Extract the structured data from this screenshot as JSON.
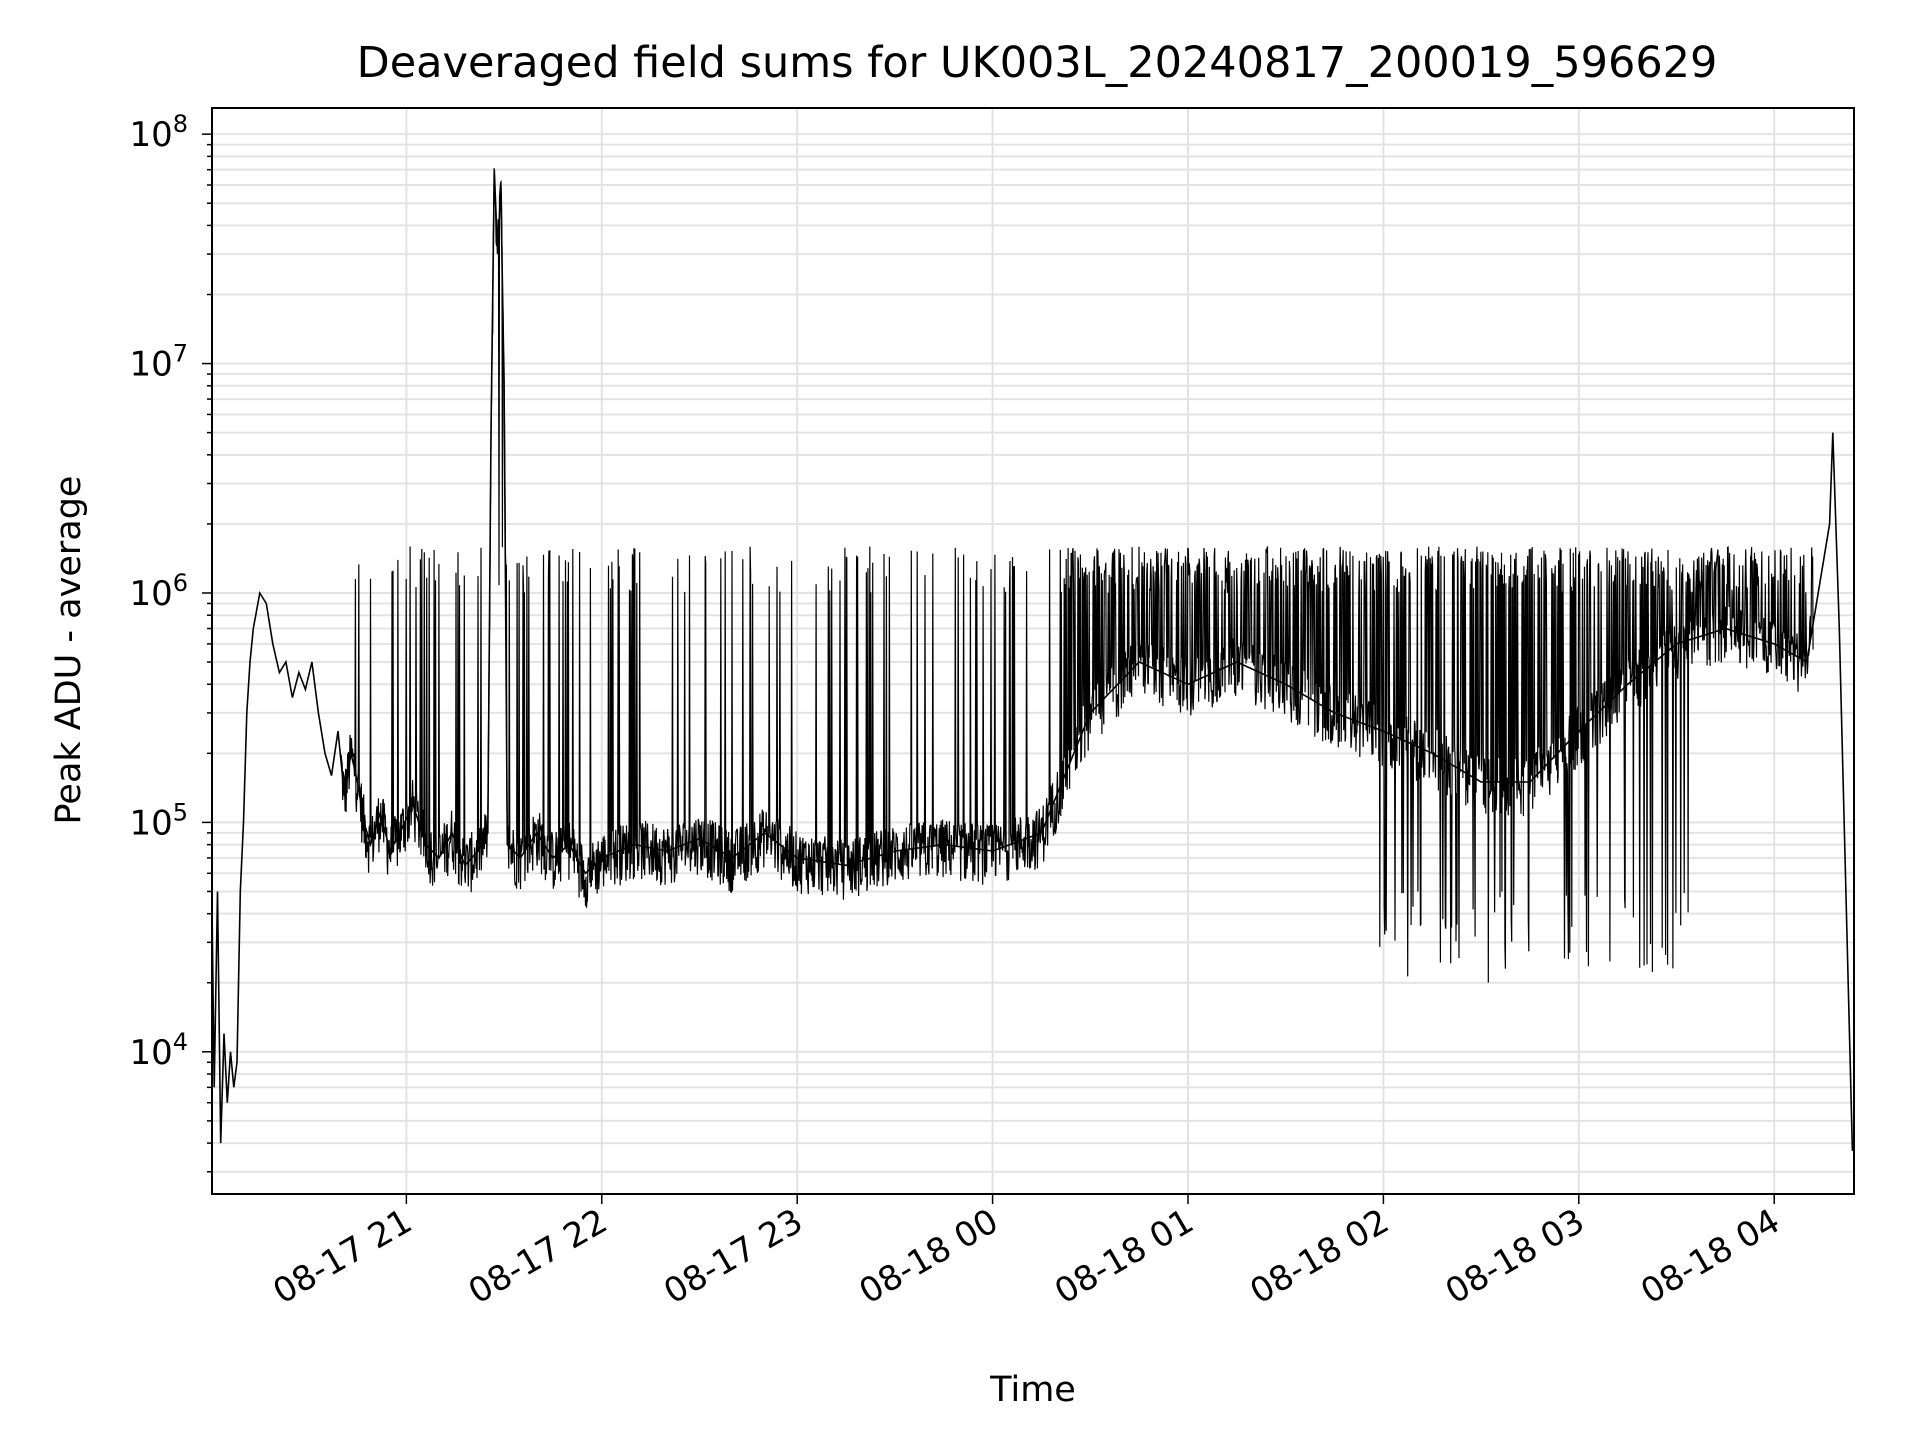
{
  "chart_data": {
    "type": "line",
    "title": "Deaveraged field sums for UK003L_20240817_200019_596629",
    "xlabel": "Time",
    "ylabel": "Peak ADU - average",
    "y_scale": "log",
    "ylim": [
      2400,
      130000000
    ],
    "xlim": [
      "2024-08-17 20:00:19",
      "2024-08-18 04:24:30"
    ],
    "grid": true,
    "line_color": "#000000",
    "x_ticks": [
      "2024-08-17 21:00",
      "2024-08-17 22:00",
      "2024-08-17 23:00",
      "2024-08-18 00:00",
      "2024-08-18 01:00",
      "2024-08-18 02:00",
      "2024-08-18 03:00",
      "2024-08-18 04:00"
    ],
    "x_tick_labels": [
      "08-17 21",
      "08-17 22",
      "08-17 23",
      "08-18 00",
      "08-18 01",
      "08-18 02",
      "08-18 03",
      "08-18 04"
    ],
    "y_ticks": [
      10000,
      100000,
      1000000,
      10000000,
      100000000
    ],
    "y_tick_labels": [
      {
        "base": "10",
        "exp": "4"
      },
      {
        "base": "10",
        "exp": "5"
      },
      {
        "base": "10",
        "exp": "6"
      },
      {
        "base": "10",
        "exp": "7"
      },
      {
        "base": "10",
        "exp": "8"
      }
    ],
    "series": [
      {
        "points": [
          [
            "2024-08-17 20:00:20",
            40000
          ],
          [
            "2024-08-17 20:01:00",
            7000
          ],
          [
            "2024-08-17 20:02:00",
            50000
          ],
          [
            "2024-08-17 20:03:00",
            4000
          ],
          [
            "2024-08-17 20:04:00",
            12000
          ],
          [
            "2024-08-17 20:05:00",
            6000
          ],
          [
            "2024-08-17 20:06:00",
            10000
          ],
          [
            "2024-08-17 20:07:00",
            7000
          ],
          [
            "2024-08-17 20:08:00",
            9000
          ],
          [
            "2024-08-17 20:09:00",
            50000
          ],
          [
            "2024-08-17 20:10:00",
            100000
          ],
          [
            "2024-08-17 20:11:00",
            300000
          ],
          [
            "2024-08-17 20:12:00",
            500000
          ],
          [
            "2024-08-17 20:13:00",
            700000
          ],
          [
            "2024-08-17 20:15:00",
            1000000
          ],
          [
            "2024-08-17 20:17:00",
            900000
          ],
          [
            "2024-08-17 20:19:00",
            600000
          ],
          [
            "2024-08-17 20:21:00",
            450000
          ],
          [
            "2024-08-17 20:23:00",
            500000
          ],
          [
            "2024-08-17 20:25:00",
            350000
          ],
          [
            "2024-08-17 20:27:00",
            450000
          ],
          [
            "2024-08-17 20:29:00",
            380000
          ],
          [
            "2024-08-17 20:31:00",
            500000
          ],
          [
            "2024-08-17 20:33:00",
            300000
          ],
          [
            "2024-08-17 20:35:00",
            200000
          ],
          [
            "2024-08-17 20:37:00",
            160000
          ],
          [
            "2024-08-17 20:39:00",
            250000
          ],
          [
            "2024-08-17 20:41:00",
            130000
          ],
          [
            "2024-08-17 20:43:00",
            200000
          ],
          [
            "2024-08-17 20:45:00",
            150000
          ],
          [
            "2024-08-17 20:47:00",
            100000
          ],
          [
            "2024-08-17 20:49:00",
            80000
          ],
          [
            "2024-08-17 20:52:00",
            110000
          ],
          [
            "2024-08-17 20:55:00",
            75000
          ],
          [
            "2024-08-17 20:58:00",
            90000
          ],
          [
            "2024-08-17 21:02:00",
            120000
          ],
          [
            "2024-08-17 21:06:00",
            80000
          ],
          [
            "2024-08-17 21:10:00",
            70000
          ],
          [
            "2024-08-17 21:14:00",
            90000
          ],
          [
            "2024-08-17 21:18:00",
            65000
          ],
          [
            "2024-08-17 21:22:00",
            75000
          ],
          [
            "2024-08-17 21:25:00",
            90000
          ],
          [
            "2024-08-17 21:26:00",
            5000000
          ],
          [
            "2024-08-17 21:27:00",
            70000000
          ],
          [
            "2024-08-17 21:28:00",
            30000000
          ],
          [
            "2024-08-17 21:29:00",
            60000000
          ],
          [
            "2024-08-17 21:30:00",
            8000000
          ],
          [
            "2024-08-17 21:31:00",
            80000
          ],
          [
            "2024-08-17 21:35:00",
            70000
          ],
          [
            "2024-08-17 21:40:00",
            90000
          ],
          [
            "2024-08-17 21:45:00",
            70000
          ],
          [
            "2024-08-17 21:50:00",
            80000
          ],
          [
            "2024-08-17 21:55:00",
            60000
          ],
          [
            "2024-08-17 22:00:00",
            70000
          ],
          [
            "2024-08-17 22:10:00",
            80000
          ],
          [
            "2024-08-17 22:20:00",
            75000
          ],
          [
            "2024-08-17 22:30:00",
            85000
          ],
          [
            "2024-08-17 22:40:00",
            70000
          ],
          [
            "2024-08-17 22:50:00",
            90000
          ],
          [
            "2024-08-17 23:00:00",
            70000
          ],
          [
            "2024-08-17 23:15:00",
            65000
          ],
          [
            "2024-08-17 23:30:00",
            75000
          ],
          [
            "2024-08-17 23:45:00",
            80000
          ],
          [
            "2024-08-18 00:00:00",
            75000
          ],
          [
            "2024-08-18 00:15:00",
            90000
          ],
          [
            "2024-08-18 00:30:00",
            300000
          ],
          [
            "2024-08-18 00:45:00",
            500000
          ],
          [
            "2024-08-18 01:00:00",
            400000
          ],
          [
            "2024-08-18 01:15:00",
            500000
          ],
          [
            "2024-08-18 01:30:00",
            400000
          ],
          [
            "2024-08-18 01:45:00",
            300000
          ],
          [
            "2024-08-18 02:00:00",
            250000
          ],
          [
            "2024-08-18 02:15:00",
            200000
          ],
          [
            "2024-08-18 02:30:00",
            150000
          ],
          [
            "2024-08-18 02:45:00",
            150000
          ],
          [
            "2024-08-18 03:00:00",
            250000
          ],
          [
            "2024-08-18 03:15:00",
            400000
          ],
          [
            "2024-08-18 03:30:00",
            600000
          ],
          [
            "2024-08-18 03:45:00",
            700000
          ],
          [
            "2024-08-18 04:00:00",
            600000
          ],
          [
            "2024-08-18 04:10:00",
            500000
          ],
          [
            "2024-08-18 04:17:00",
            2000000
          ],
          [
            "2024-08-18 04:18:00",
            5000000
          ],
          [
            "2024-08-18 04:20:00",
            700000
          ],
          [
            "2024-08-18 04:24:00",
            3700
          ]
        ]
      }
    ]
  }
}
